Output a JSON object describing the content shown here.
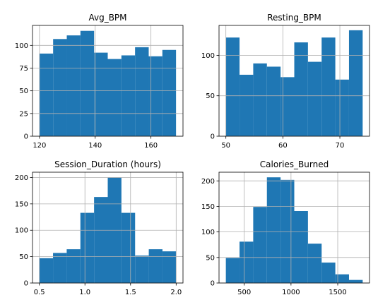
{
  "figure": {
    "background": "#ffffff",
    "bar_color": "#1f77b4",
    "grid_color": "#b0b0b0",
    "axes_color": "#000000"
  },
  "chart_data": [
    {
      "type": "bar",
      "title": "Avg_BPM",
      "xlabel": "",
      "ylabel": "",
      "grid": true,
      "bins": [
        [
          120,
          124.9
        ],
        [
          124.9,
          129.8
        ],
        [
          129.8,
          134.7
        ],
        [
          134.7,
          139.6
        ],
        [
          139.6,
          144.5
        ],
        [
          144.5,
          149.4
        ],
        [
          149.4,
          154.3
        ],
        [
          154.3,
          159.2
        ],
        [
          159.2,
          164.1
        ],
        [
          164.1,
          169
        ]
      ],
      "values": [
        91,
        107,
        111,
        116,
        92,
        85,
        89,
        98,
        88,
        95
      ],
      "xlim": [
        117.5,
        171.5
      ],
      "ylim": [
        0,
        122
      ],
      "xticks": [
        120,
        140,
        160
      ],
      "xtick_labels": [
        "120",
        "140",
        "160"
      ],
      "yticks": [
        0,
        25,
        50,
        75,
        100
      ],
      "ytick_labels": [
        "0",
        "25",
        "50",
        "75",
        "100"
      ]
    },
    {
      "type": "bar",
      "title": "Resting_BPM",
      "xlabel": "",
      "ylabel": "",
      "grid": true,
      "bins": [
        [
          50,
          52.4
        ],
        [
          52.4,
          54.8
        ],
        [
          54.8,
          57.2
        ],
        [
          57.2,
          59.6
        ],
        [
          59.6,
          62
        ],
        [
          62,
          64.4
        ],
        [
          64.4,
          66.8
        ],
        [
          66.8,
          69.2
        ],
        [
          69.2,
          71.6
        ],
        [
          71.6,
          74
        ]
      ],
      "values": [
        122,
        76,
        90,
        86,
        73,
        116,
        92,
        122,
        70,
        131
      ],
      "xlim": [
        48.8,
        75.2
      ],
      "ylim": [
        0,
        137
      ],
      "xticks": [
        50,
        60,
        70
      ],
      "xtick_labels": [
        "50",
        "60",
        "70"
      ],
      "yticks": [
        0,
        50,
        100
      ],
      "ytick_labels": [
        "0",
        "50",
        "100"
      ]
    },
    {
      "type": "bar",
      "title": "Session_Duration (hours)",
      "xlabel": "",
      "ylabel": "",
      "grid": true,
      "bins": [
        [
          0.5,
          0.65
        ],
        [
          0.65,
          0.8
        ],
        [
          0.8,
          0.95
        ],
        [
          0.95,
          1.1
        ],
        [
          1.1,
          1.25
        ],
        [
          1.25,
          1.4
        ],
        [
          1.4,
          1.55
        ],
        [
          1.55,
          1.7
        ],
        [
          1.7,
          1.85
        ],
        [
          1.85,
          2.0
        ]
      ],
      "values": [
        47,
        57,
        64,
        133,
        163,
        200,
        133,
        52,
        64,
        60
      ],
      "xlim": [
        0.425,
        2.075
      ],
      "ylim": [
        0,
        210
      ],
      "xticks": [
        0.5,
        1.0,
        1.5,
        2.0
      ],
      "xtick_labels": [
        "0.5",
        "1.0",
        "1.5",
        "2.0"
      ],
      "yticks": [
        0,
        50,
        100,
        150,
        200
      ],
      "ytick_labels": [
        "0",
        "50",
        "100",
        "150",
        "200"
      ]
    },
    {
      "type": "bar",
      "title": "Calories_Burned",
      "xlabel": "",
      "ylabel": "",
      "grid": true,
      "bins": [
        [
          303,
          449.4
        ],
        [
          449.4,
          595.8
        ],
        [
          595.8,
          742.2
        ],
        [
          742.2,
          888.6
        ],
        [
          888.6,
          1035
        ],
        [
          1035,
          1181.4
        ],
        [
          1181.4,
          1327.8
        ],
        [
          1327.8,
          1474.2
        ],
        [
          1474.2,
          1620.6
        ],
        [
          1620.6,
          1767
        ]
      ],
      "values": [
        49,
        81,
        149,
        207,
        202,
        141,
        77,
        40,
        17,
        6
      ],
      "xlim": [
        230,
        1840
      ],
      "ylim": [
        0,
        217
      ],
      "xticks": [
        500,
        1000,
        1500
      ],
      "xtick_labels": [
        "500",
        "1000",
        "1500"
      ],
      "yticks": [
        0,
        50,
        100,
        150,
        200
      ],
      "ytick_labels": [
        "0",
        "50",
        "100",
        "150",
        "200"
      ]
    }
  ]
}
